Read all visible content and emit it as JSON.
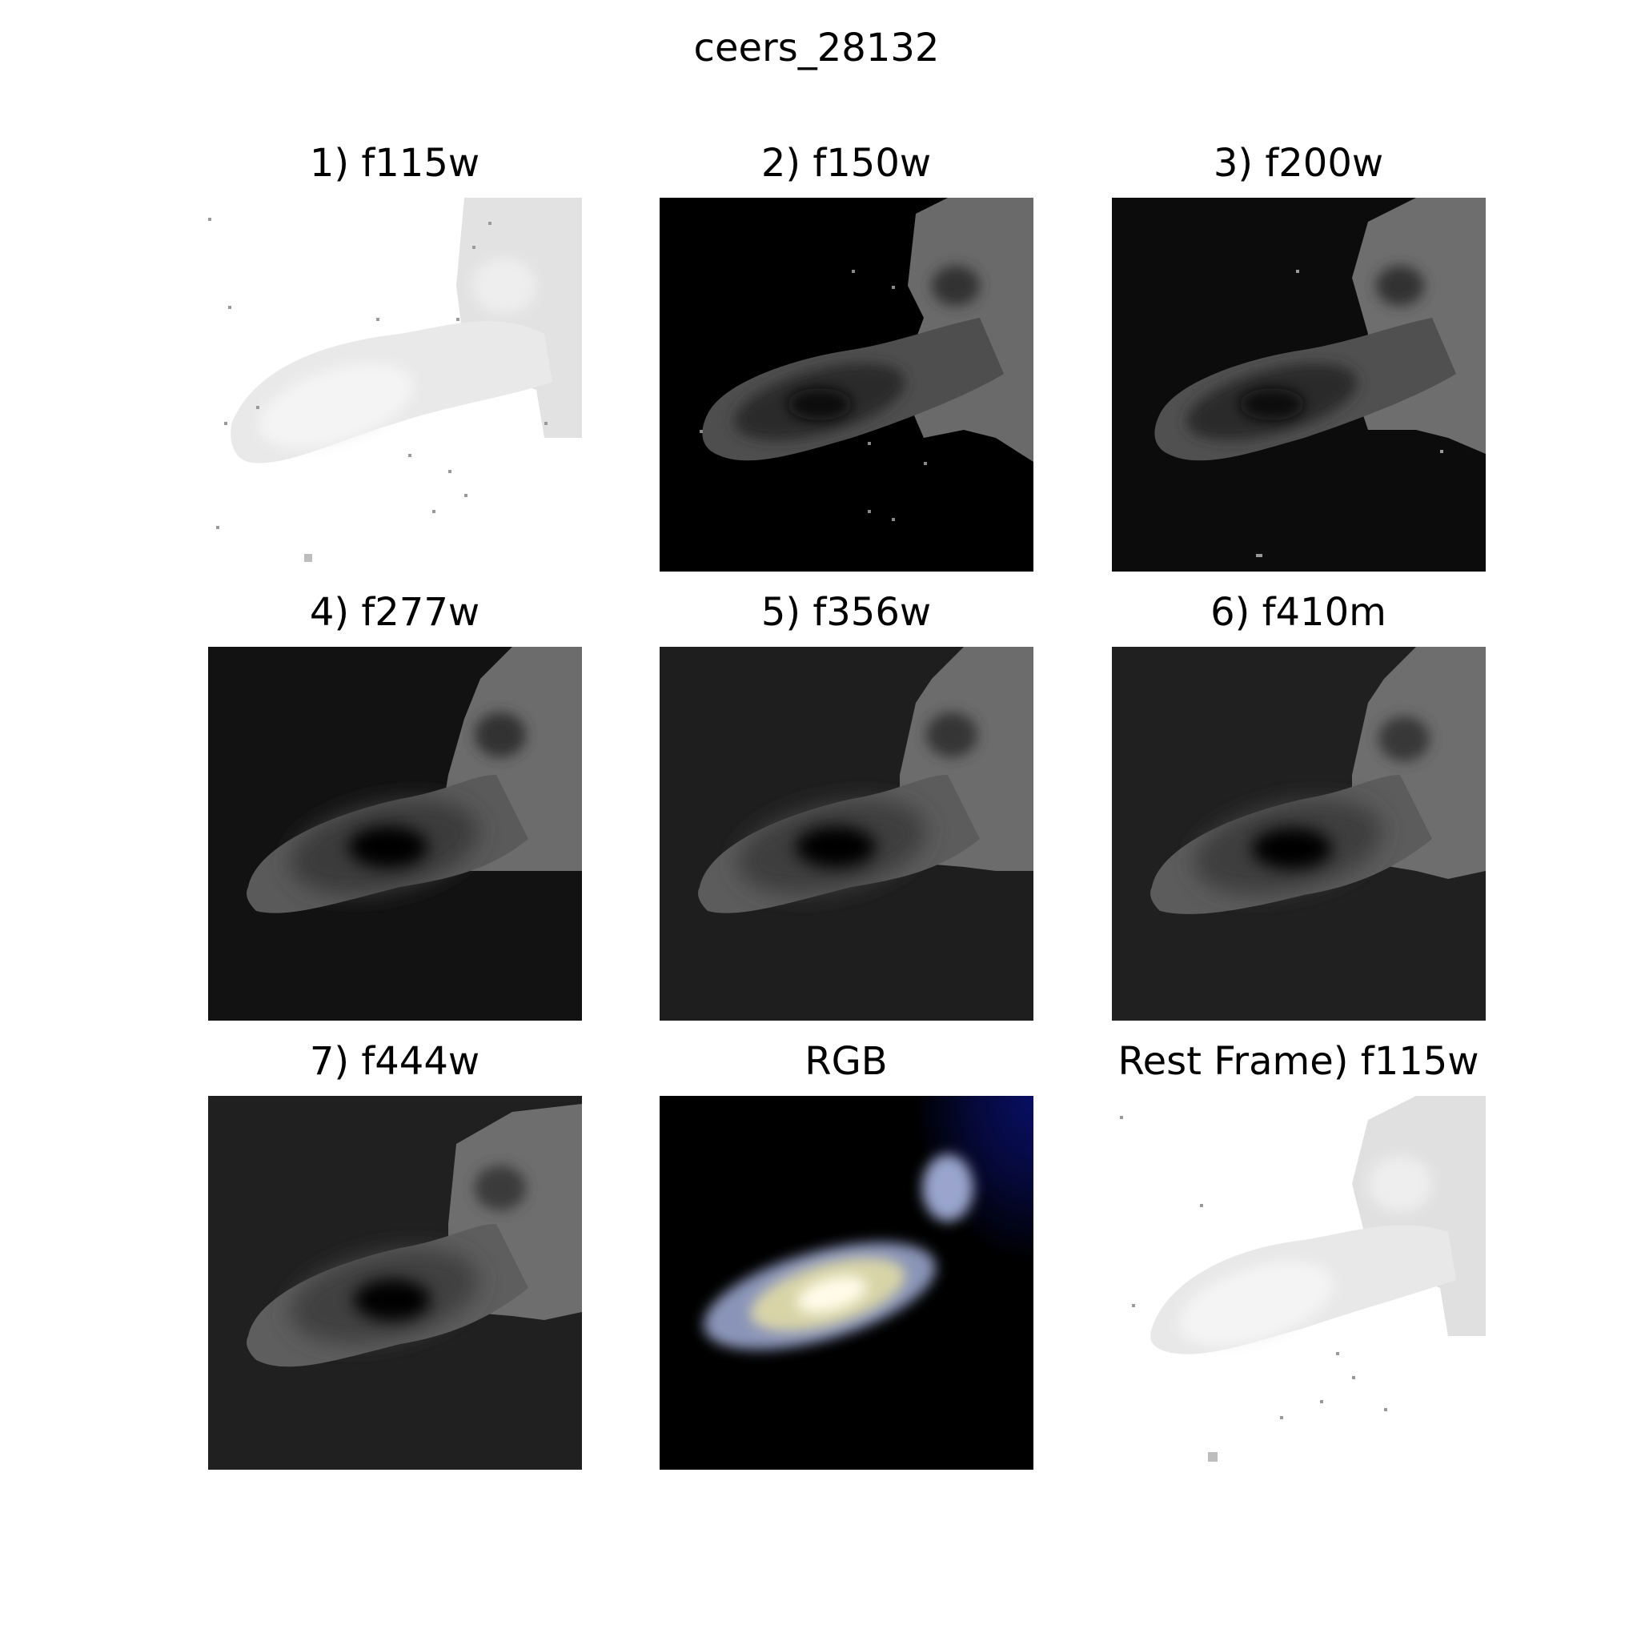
{
  "figure": {
    "title": "ceers_28132"
  },
  "panels": [
    {
      "label": "1) f115w",
      "style": "inverted-light"
    },
    {
      "label": "2) f150w",
      "style": "dark"
    },
    {
      "label": "3) f200w",
      "style": "dark"
    },
    {
      "label": "4) f277w",
      "style": "dark-smooth"
    },
    {
      "label": "5) f356w",
      "style": "dark-smooth"
    },
    {
      "label": "6) f410m",
      "style": "dark-smooth"
    },
    {
      "label": "7) f444w",
      "style": "dark-smooth"
    },
    {
      "label": "RGB",
      "style": "color-composite"
    },
    {
      "label": "Rest Frame) f115w",
      "style": "inverted-light"
    }
  ]
}
